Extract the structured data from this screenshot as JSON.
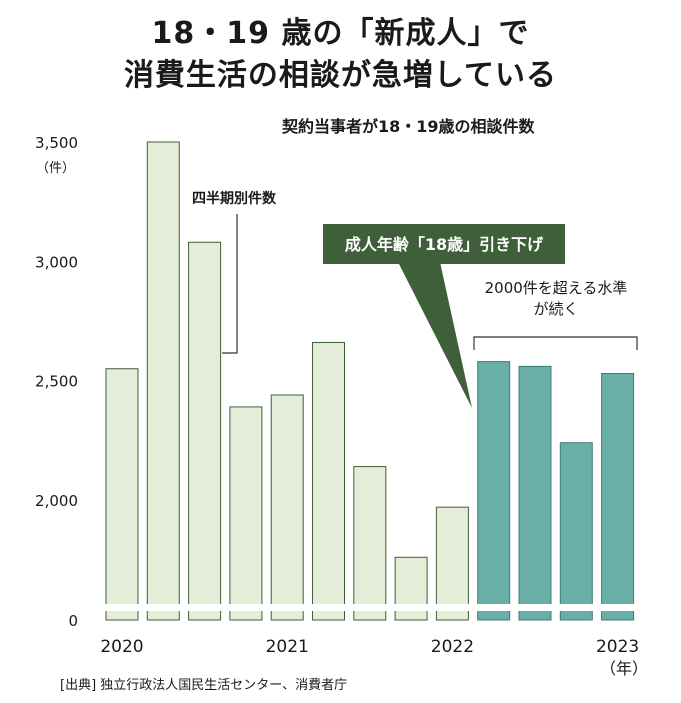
{
  "title_line1": "18・19 歳の「新成人」で",
  "title_line2": "消費生活の相談が急増している",
  "subtitle": "契約当事者が18・19歳の相談件数",
  "unit_label": "（件）",
  "source": "[出典]  独立行政法人国民生活センター、消費者庁",
  "year_unit": "（年）",
  "annotations": {
    "quarterly": "四半期別件数",
    "age_change": "成人年齢「18歳」引き下げ",
    "level_line1": "2000件を超える水準",
    "level_line2": "が続く"
  },
  "colors": {
    "light_bar": "#e3edd8",
    "light_bar_border": "#3f5e3a",
    "dark_bar": "#6aaea8",
    "dark_bar_border": "#3e7d77",
    "callout": "#3f5e3a",
    "axis_break": "#ffffff"
  },
  "chart_data": {
    "type": "bar",
    "title": "契約当事者が18・19歳の相談件数",
    "ylabel": "（件）",
    "xlabel": "（年）",
    "ylim": [
      0,
      3500
    ],
    "axis_break": "y-axis broken between 0 and 2,000",
    "yticks": [
      {
        "value": 0,
        "label": "0"
      },
      {
        "value": 2000,
        "label": "2,000"
      },
      {
        "value": 2500,
        "label": "2,500"
      },
      {
        "value": 3000,
        "label": "3,000"
      },
      {
        "value": 3500,
        "label": "3,500"
      }
    ],
    "x_labels": [
      {
        "bar_index": 0,
        "label": "2020"
      },
      {
        "bar_index": 4,
        "label": "2021"
      },
      {
        "bar_index": 8,
        "label": "2022"
      },
      {
        "bar_index": 12,
        "label": "2023"
      }
    ],
    "values": [
      2550,
      3500,
      3080,
      2390,
      2440,
      2660,
      2140,
      1760,
      1970,
      2580,
      2560,
      2240,
      2530
    ],
    "highlight_from_index": 9
  }
}
